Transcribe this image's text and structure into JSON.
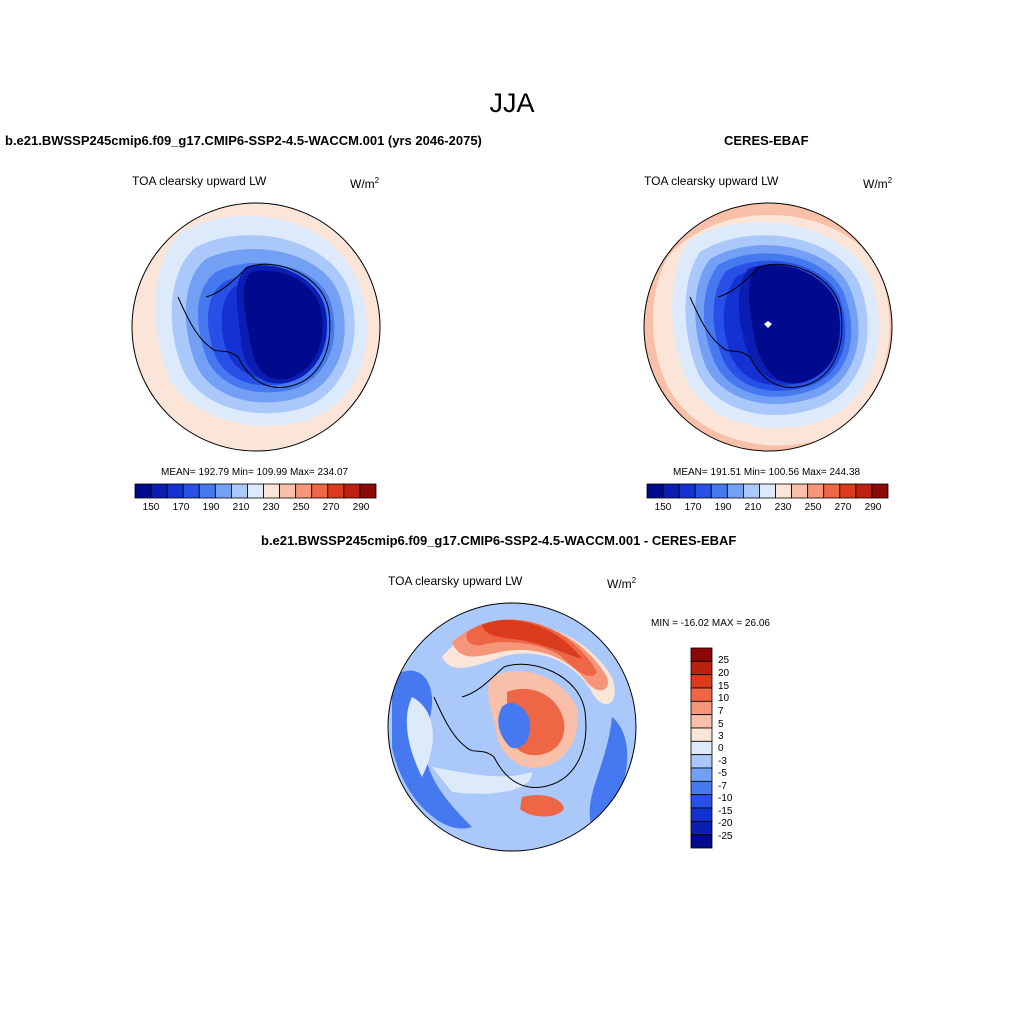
{
  "figure": {
    "season_title": "JJA",
    "model_case": "b.e21.BWSSP245cmip6.f09_g17.CMIP6-SSP2-4.5-WACCM.001 (yrs 2046-2075)",
    "obs_case": "CERES-EBAF",
    "diff_case": "b.e21.BWSSP245cmip6.f09_g17.CMIP6-SSP2-4.5-WACCM.001 - CERES-EBAF"
  },
  "panels": {
    "model": {
      "variable": "TOA clearsky upward LW",
      "units_base": "W/m",
      "units_exp": "2",
      "stats": "MEAN= 192.79   Min= 109.99   Max= 234.07"
    },
    "obs": {
      "variable": "TOA clearsky upward LW",
      "units_base": "W/m",
      "units_exp": "2",
      "stats": "MEAN= 191.51   Min= 100.56   Max= 244.38"
    },
    "diff": {
      "variable": "TOA clearsky upward LW",
      "units_base": "W/m",
      "units_exp": "2",
      "stats": "MIN = -16.02 MAX =  26.06"
    }
  },
  "colorbars": {
    "abs": {
      "colors": [
        "#000a8c",
        "#0a1eb4",
        "#1432d2",
        "#2850e6",
        "#4678f0",
        "#73a0f5",
        "#aac8fa",
        "#dceafc",
        "#fbe4d8",
        "#f8c0a8",
        "#f5967a",
        "#ee6646",
        "#dc3c1e",
        "#be2010",
        "#8c0808"
      ],
      "tick_labels": [
        "150",
        "170",
        "190",
        "210",
        "230",
        "250",
        "270",
        "290"
      ]
    },
    "diff": {
      "colors": [
        "#000a8c",
        "#0a1eb4",
        "#1432d2",
        "#2850e6",
        "#4678f0",
        "#73a0f5",
        "#aac8fa",
        "#dceafc",
        "#fbe4d8",
        "#f8c0a8",
        "#f5967a",
        "#ee6646",
        "#dc3c1e",
        "#be2010",
        "#8c0808"
      ],
      "tick_labels": [
        "25",
        "20",
        "15",
        "10",
        "7",
        "5",
        "3",
        "0",
        "-3",
        "-5",
        "-7",
        "-10",
        "-15",
        "-20",
        "-25"
      ]
    }
  }
}
